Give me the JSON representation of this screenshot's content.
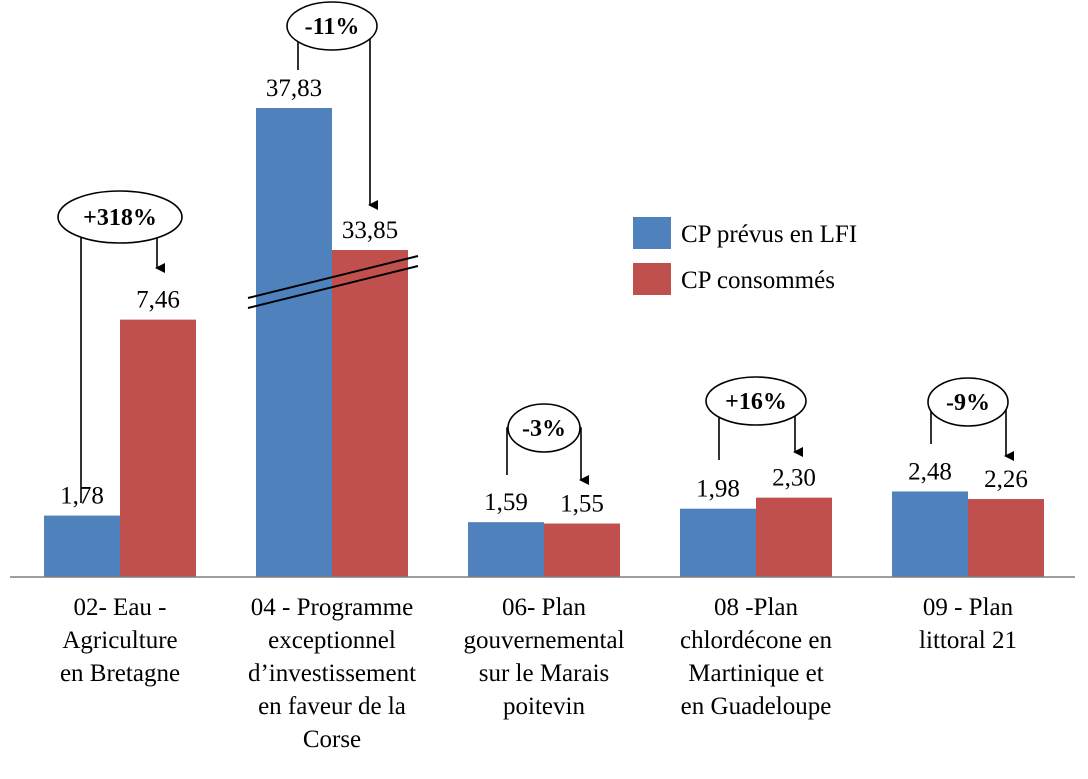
{
  "chart_data": {
    "type": "bar",
    "categories": [
      [
        "02- Eau -",
        "Agriculture",
        "en Bretagne"
      ],
      [
        "04 - Programme",
        "exceptionnel",
        "d’investissement",
        "en faveur de la",
        "Corse"
      ],
      [
        "06- Plan",
        "gouvernemental",
        "sur le Marais",
        "poitevin"
      ],
      [
        "08 -Plan",
        "chlordécone en",
        "Martinique  et",
        "en Guadeloupe"
      ],
      [
        "09 - Plan",
        "littoral 21"
      ]
    ],
    "series": [
      {
        "name": "CP prévus en LFI",
        "color": "#4F81BD",
        "values": [
          1.78,
          37.83,
          1.59,
          1.98,
          2.48
        ],
        "labels": [
          "1,78",
          "37,83",
          "1,59",
          "1,98",
          "2,48"
        ]
      },
      {
        "name": "CP consommés",
        "color": "#C0504D",
        "values": [
          7.46,
          33.85,
          1.55,
          2.3,
          2.26
        ],
        "labels": [
          "7,46",
          "33,85",
          "1,55",
          "2,30",
          "2,26"
        ]
      }
    ],
    "variation_labels": [
      "+318%",
      "-11%",
      "-3%",
      "+16%",
      "-9%"
    ],
    "axis_break": "second category, both bars",
    "legend_position": "right",
    "gridlines": false,
    "title": "",
    "xlabel": "",
    "ylabel": ""
  }
}
